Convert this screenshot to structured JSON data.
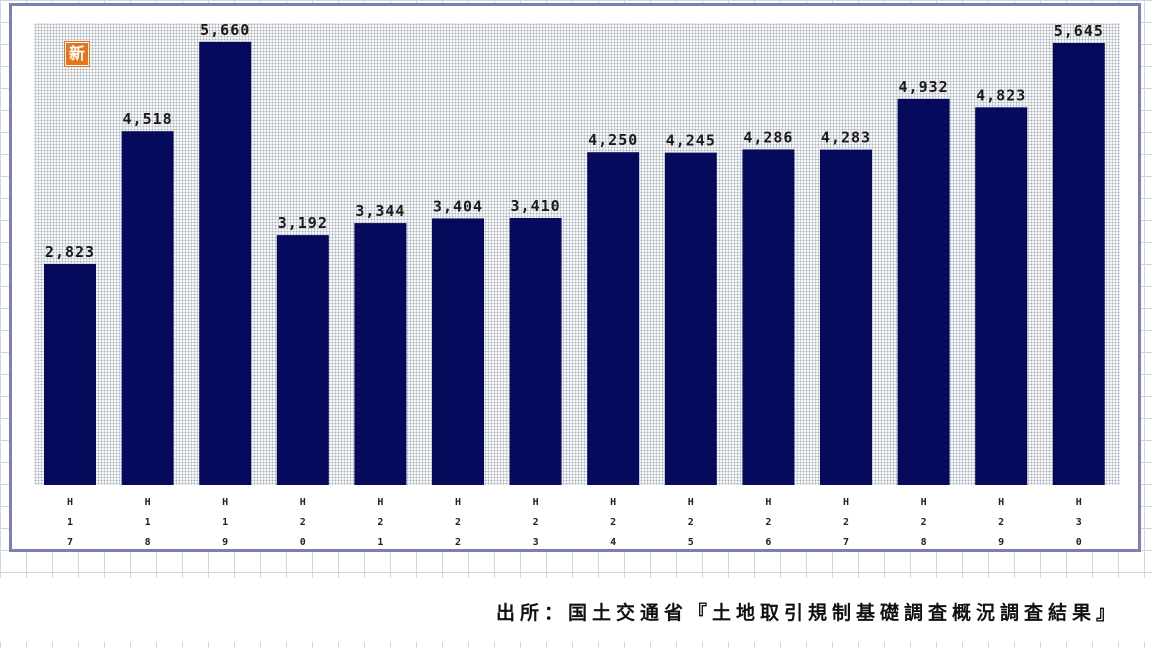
{
  "badge": "新",
  "source_note": "出所：国土交通省『土地取引規制基礎調査概況調査結果』",
  "colors": {
    "bar": "#050a5c",
    "frame": "#7b7fb3",
    "badge": "#e8741a"
  },
  "chart_data": {
    "type": "bar",
    "title": "",
    "xlabel": "",
    "ylabel": "",
    "categories": [
      "H17",
      "H18",
      "H19",
      "H20",
      "H21",
      "H22",
      "H23",
      "H24",
      "H25",
      "H26",
      "H27",
      "H28",
      "H29",
      "H30"
    ],
    "tick_labels": [
      "H\n1\n7",
      "H\n1\n8",
      "H\n1\n9",
      "H\n2\n0",
      "H\n2\n1",
      "H\n2\n2",
      "H\n2\n3",
      "H\n2\n4",
      "H\n2\n5",
      "H\n2\n6",
      "H\n2\n7",
      "H\n2\n8",
      "H\n2\n9",
      "H\n3\n0"
    ],
    "values": [
      2823,
      4518,
      5660,
      3192,
      3344,
      3404,
      3410,
      4250,
      4245,
      4286,
      4283,
      4932,
      4823,
      5645
    ],
    "value_labels": [
      "2,823",
      "4,518",
      "5,660",
      "3,192",
      "3,344",
      "3,404",
      "3,410",
      "4,250",
      "4,245",
      "4,286",
      "4,283",
      "4,932",
      "4,823",
      "5,645"
    ],
    "ylim": [
      0,
      5900
    ],
    "grid": false,
    "legend": "none"
  }
}
